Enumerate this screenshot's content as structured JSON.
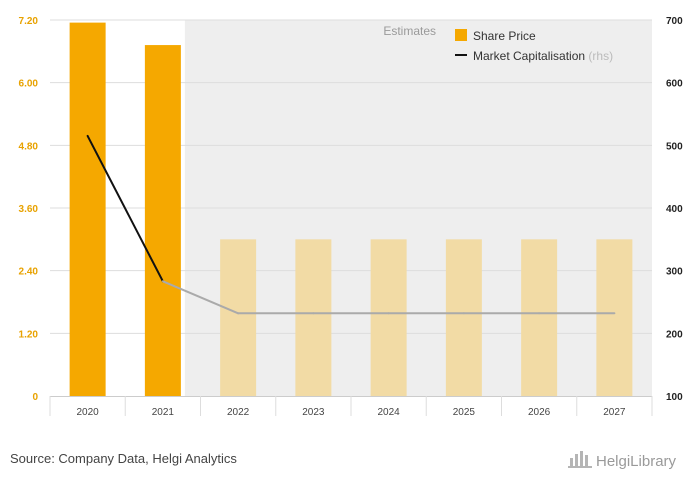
{
  "chart_data": {
    "type": "bar",
    "categories": [
      "2020",
      "2021",
      "2022",
      "2023",
      "2024",
      "2025",
      "2026",
      "2027"
    ],
    "series": [
      {
        "name": "Share Price",
        "type": "bar",
        "axis": "left",
        "values": [
          7.15,
          6.72,
          3.0,
          3.0,
          3.0,
          3.0,
          3.0,
          3.0
        ],
        "color": "#f5a800",
        "estimate_color": "#f2dba5"
      },
      {
        "name": "Market Capitalisation",
        "type": "line",
        "axis": "right",
        "values": [
          515,
          283,
          232,
          232,
          232,
          232,
          232,
          232
        ],
        "color": "#111111",
        "estimate_color": "#aaaaaa"
      }
    ],
    "estimates_from_index": 2,
    "estimates_label": "Estimates",
    "left_axis": {
      "ylim": [
        0,
        7.2
      ],
      "ticks": [
        "0",
        "1.20",
        "2.40",
        "3.60",
        "4.80",
        "6.00",
        "7.20"
      ]
    },
    "right_axis": {
      "ylim": [
        100,
        700
      ],
      "ticks": [
        "100",
        "200",
        "300",
        "400",
        "500",
        "600",
        "700"
      ]
    },
    "legend": {
      "placement": "top-right",
      "rhs_suffix": "(rhs)"
    },
    "grid": true,
    "colors": {
      "estimate_background": "#eeeeee",
      "grid": "#dddddd"
    }
  },
  "footer": {
    "source": "Source: Company Data, Helgi Analytics",
    "logo": "HelgiLibrary"
  }
}
